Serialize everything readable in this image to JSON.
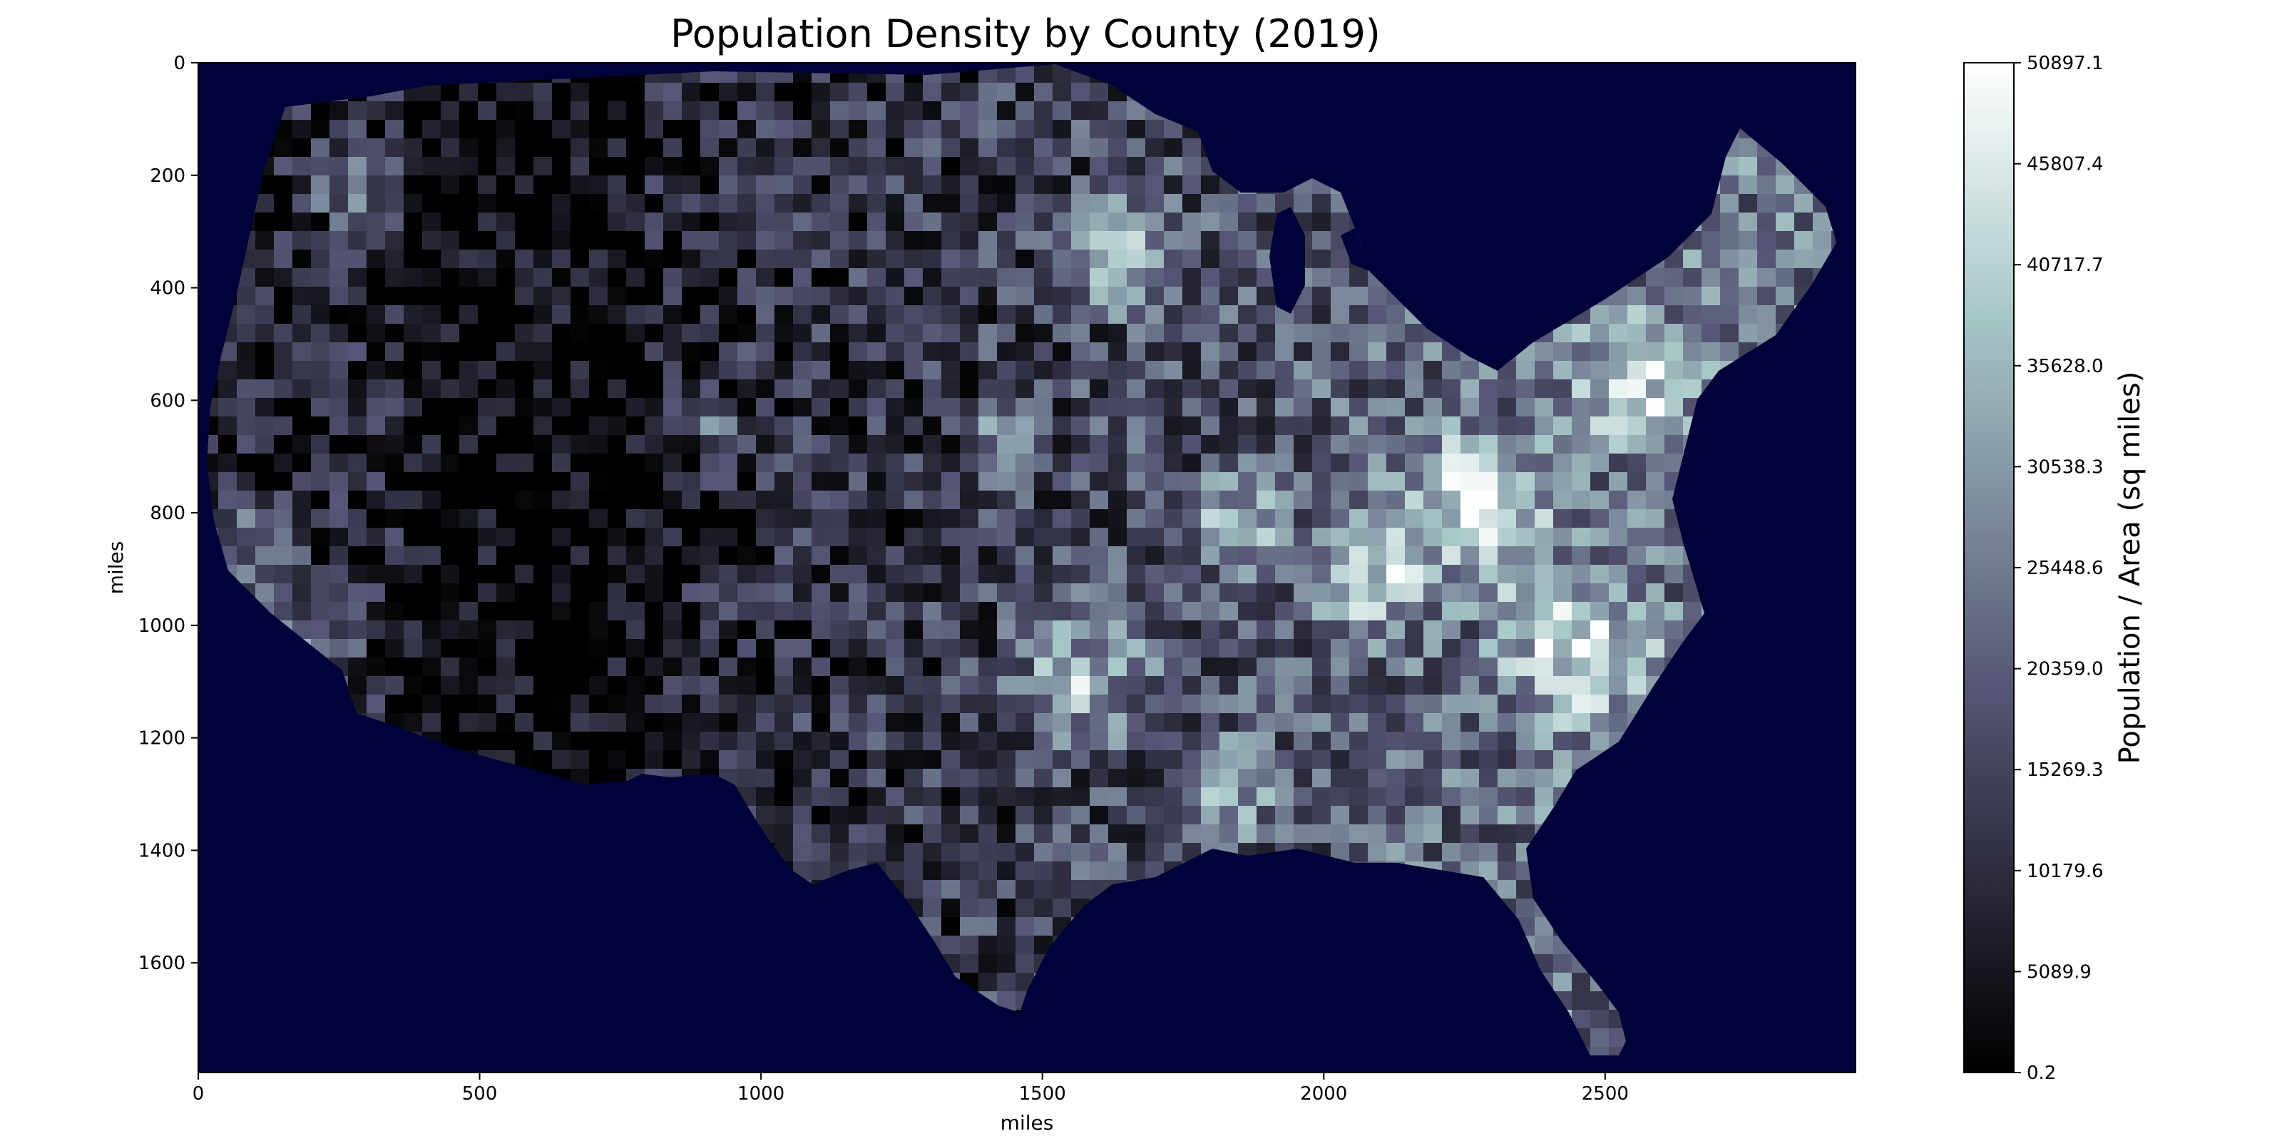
{
  "chart_data": {
    "type": "heatmap",
    "title": "Population Density by County (2019)",
    "xlabel": "miles",
    "ylabel": "miles",
    "xlim": [
      0,
      2945
    ],
    "ylim": [
      1795,
      0
    ],
    "x_ticks": [
      0,
      500,
      1000,
      1500,
      2000,
      2500
    ],
    "y_ticks": [
      0,
      200,
      400,
      600,
      800,
      1000,
      1200,
      1400,
      1600
    ],
    "colorbar": {
      "label": "Population / Area (sq miles)",
      "colormap": "bone",
      "min": 0.2,
      "max": 50897.1,
      "ticks": [
        0.2,
        5089.9,
        10179.6,
        15269.3,
        20359.0,
        25448.6,
        30538.3,
        35628.0,
        40717.7,
        45807.4,
        50897.1
      ],
      "tick_labels": [
        "0.2",
        "5089.9",
        "10179.6",
        "15269.3",
        "20359.0",
        "25448.6",
        "30538.3",
        "35628.0",
        "40717.7",
        "45807.4",
        "50897.1"
      ]
    },
    "background_color": "#02023a",
    "grid": false
  }
}
